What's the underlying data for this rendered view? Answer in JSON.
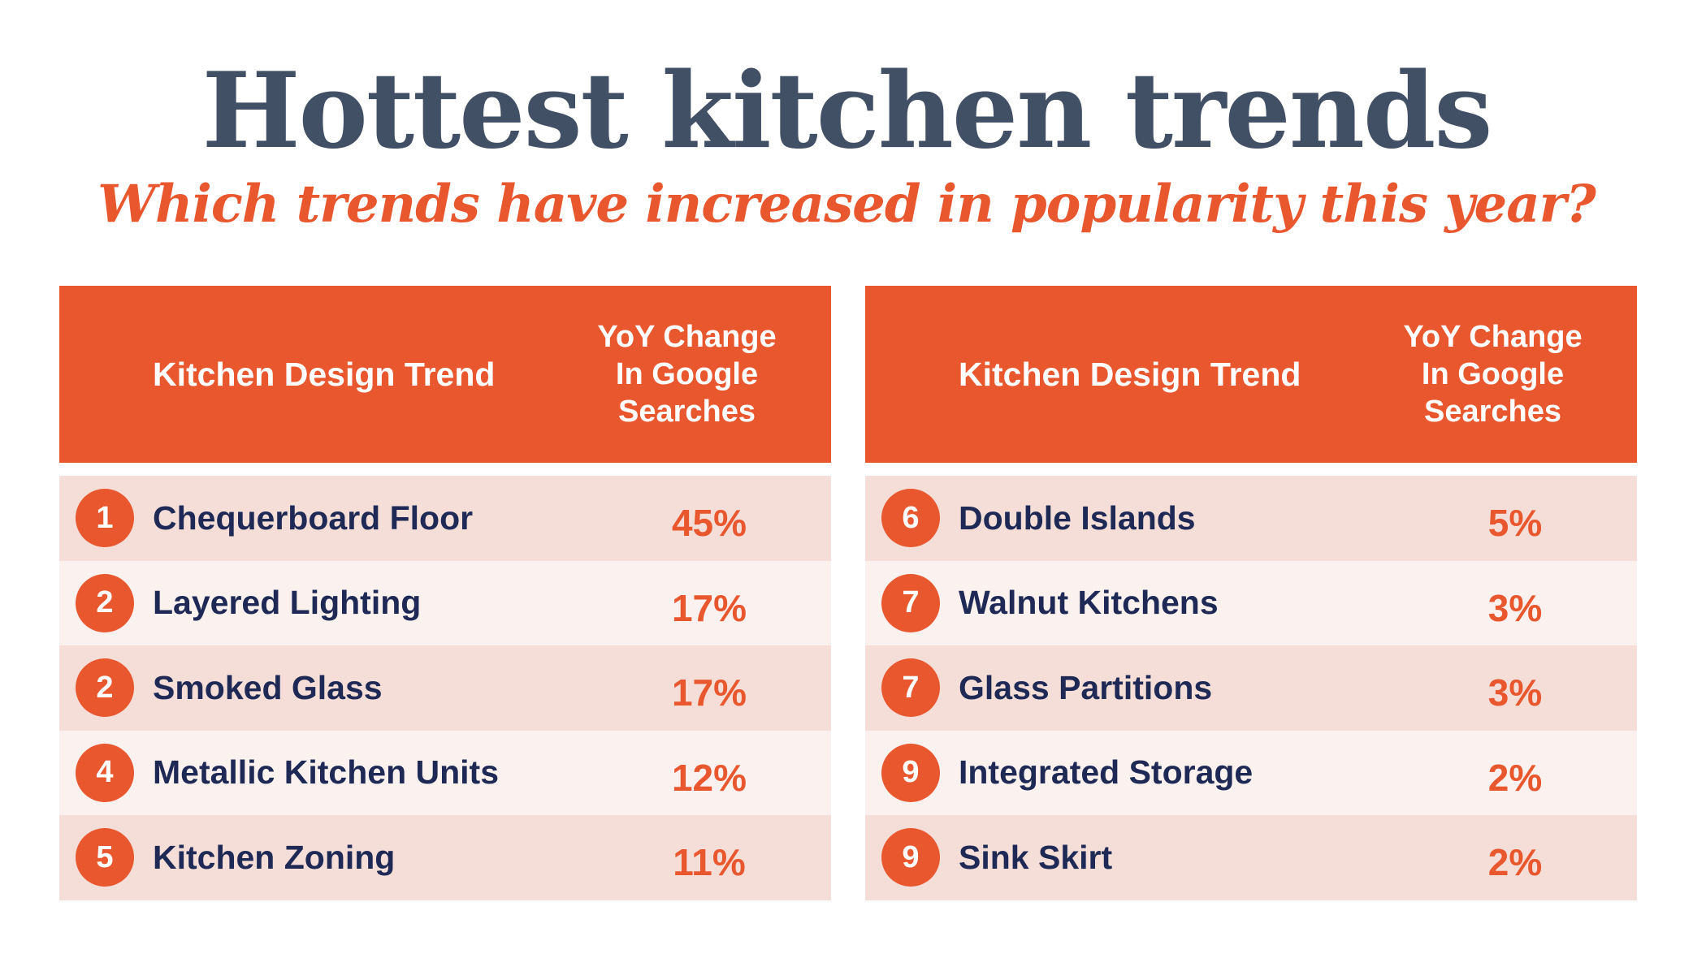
{
  "title": "Hottest kitchen trends",
  "subtitle": "Which trends have increased in popularity this year?",
  "colors": {
    "accent": "#e9572f",
    "title": "#425066",
    "text": "#1e2a55",
    "row_dark": "#f5ded7",
    "row_light": "#fbf1ee"
  },
  "headers": {
    "trend": "Kitchen Design Trend",
    "yoy_lines": [
      "YoY Change",
      "In Google",
      "Searches"
    ]
  },
  "chart_data": {
    "type": "table",
    "title": "Hottest kitchen trends",
    "subtitle": "Which trends have increased in popularity this year?",
    "columns": [
      "Kitchen Design Trend",
      "YoY Change In Google Searches"
    ],
    "tables": [
      {
        "rows": [
          {
            "rank": "1",
            "trend": "Chequerboard Floor",
            "value": "45%"
          },
          {
            "rank": "2",
            "trend": "Layered Lighting",
            "value": "17%"
          },
          {
            "rank": "2",
            "trend": "Smoked Glass",
            "value": "17%"
          },
          {
            "rank": "4",
            "trend": "Metallic Kitchen Units",
            "value": "12%"
          },
          {
            "rank": "5",
            "trend": "Kitchen Zoning",
            "value": "11%"
          }
        ]
      },
      {
        "rows": [
          {
            "rank": "6",
            "trend": "Double Islands",
            "value": "5%"
          },
          {
            "rank": "7",
            "trend": "Walnut Kitchens",
            "value": "3%"
          },
          {
            "rank": "7",
            "trend": "Glass Partitions",
            "value": "3%"
          },
          {
            "rank": "9",
            "trend": "Integrated Storage",
            "value": "2%"
          },
          {
            "rank": "9",
            "trend": "Sink Skirt",
            "value": "2%"
          }
        ]
      }
    ]
  }
}
